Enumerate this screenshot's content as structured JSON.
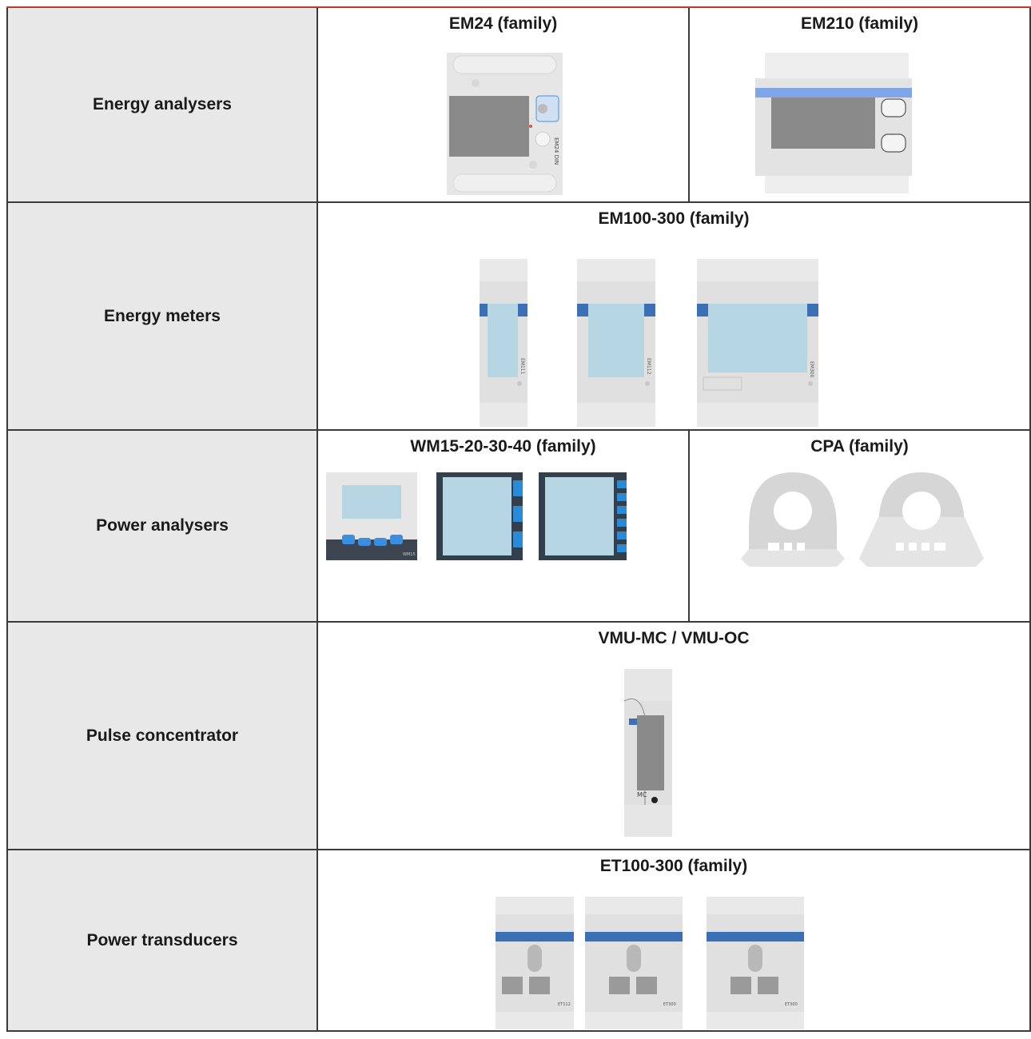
{
  "rows": [
    {
      "category": "Energy analysers",
      "families": [
        {
          "title": "EM24 (family)",
          "device_label": "EM24 DIN"
        },
        {
          "title": "EM210 (family)"
        }
      ]
    },
    {
      "category": "Energy meters",
      "families": [
        {
          "title": "EM100-300 (family)",
          "device_labels": [
            "EM111",
            "EM112",
            "EM300"
          ]
        }
      ]
    },
    {
      "category": "Power analysers",
      "families": [
        {
          "title": "WM15-20-30-40 (family)",
          "device_label": "WM15"
        },
        {
          "title": "CPA (family)"
        }
      ]
    },
    {
      "category": "Pulse concentrator",
      "families": [
        {
          "title": "VMU-MC / VMU-OC",
          "device_label": "MC"
        }
      ]
    },
    {
      "category": "Power transducers",
      "families": [
        {
          "title": "ET100-300 (family)",
          "device_labels": [
            "ET112",
            "ET300",
            "ET300"
          ]
        }
      ]
    }
  ],
  "colors": {
    "accent_line": "#c0392b",
    "category_bg": "#e8e8e8",
    "device_blue": "#3b6fb6",
    "lcd_blue": "#b7d6e3",
    "device_grey": "#e3e3e3"
  },
  "icons": [
    "em24-device-icon",
    "em210-device-icon",
    "em111-device-icon",
    "em112-device-icon",
    "em300-device-icon",
    "wm15-device-icon",
    "wm20-device-icon",
    "wm30-device-icon",
    "cpa-sensor-icon",
    "vmu-device-icon",
    "et112-device-icon",
    "et300-device-icon"
  ]
}
